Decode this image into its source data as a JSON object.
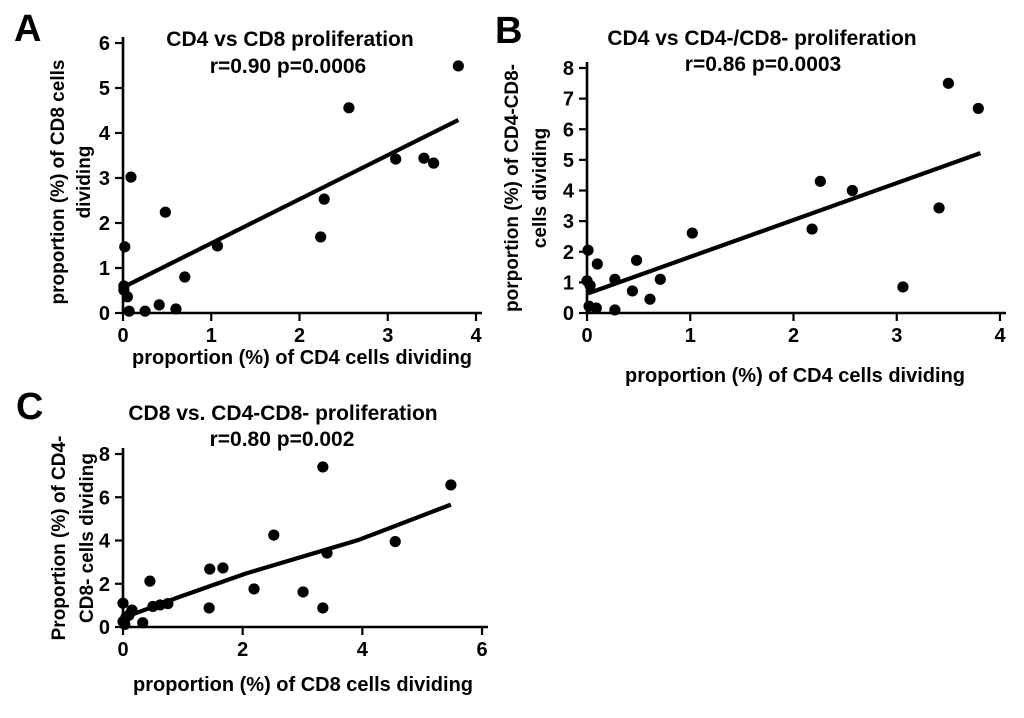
{
  "figure": {
    "background_color": "#ffffff",
    "ink_color": "#000000",
    "description": "Three-panel scatter plot figure correlating proliferation of T cell subsets"
  },
  "chart_data": [
    {
      "panel_label": "A",
      "type": "scatter",
      "title": "CD4 vs CD8 proliferation",
      "subtitle": "r=0.90 p=0.0006",
      "xlabel": "proportion (%) of CD4 cells dividing",
      "ylabel_lines": [
        "proportion (%) of CD8 cells",
        "dividing"
      ],
      "xlim": [
        0,
        4
      ],
      "ylim": [
        0,
        6
      ],
      "xticks": [
        0,
        1,
        2,
        3,
        4
      ],
      "yticks": [
        0,
        1,
        2,
        3,
        4,
        5,
        6
      ],
      "grid": false,
      "legend": null,
      "marker_color": "#000000",
      "points": [
        [
          0.01,
          0.6
        ],
        [
          0.01,
          0.51
        ],
        [
          0.05,
          0.36
        ],
        [
          0.07,
          0.04
        ],
        [
          0.25,
          0.04
        ],
        [
          0.41,
          0.18
        ],
        [
          0.6,
          0.09
        ],
        [
          0.7,
          0.8
        ],
        [
          0.09,
          3.02
        ],
        [
          0.02,
          1.47
        ],
        [
          0.48,
          2.24
        ],
        [
          1.07,
          1.49
        ],
        [
          2.24,
          1.69
        ],
        [
          2.28,
          2.53
        ],
        [
          2.56,
          4.56
        ],
        [
          3.09,
          3.42
        ],
        [
          3.41,
          3.44
        ],
        [
          3.52,
          3.33
        ],
        [
          3.8,
          5.49
        ]
      ],
      "trendline": [
        [
          0.0,
          0.57
        ],
        [
          3.8,
          4.29
        ]
      ]
    },
    {
      "panel_label": "B",
      "type": "scatter",
      "title": "CD4 vs CD4-/CD8- proliferation",
      "subtitle": "r=0.86 p=0.0003",
      "xlabel": "proportion (%) of CD4 cells dividing",
      "ylabel_lines": [
        "porportion (%) of CD4-CD8-",
        "cells dividing"
      ],
      "xlim": [
        0,
        4
      ],
      "ylim": [
        0,
        8
      ],
      "xticks": [
        0,
        1,
        2,
        3,
        4
      ],
      "yticks": [
        0,
        1,
        2,
        3,
        4,
        5,
        6,
        7,
        8
      ],
      "grid": false,
      "legend": null,
      "marker_color": "#000000",
      "points": [
        [
          0.01,
          2.05
        ],
        [
          0.1,
          1.6
        ],
        [
          0.0,
          1.05
        ],
        [
          0.03,
          0.9
        ],
        [
          0.02,
          0.22
        ],
        [
          0.09,
          0.16
        ],
        [
          0.27,
          0.1
        ],
        [
          0.27,
          1.1
        ],
        [
          0.48,
          1.72
        ],
        [
          0.44,
          0.72
        ],
        [
          0.61,
          0.45
        ],
        [
          0.71,
          1.1
        ],
        [
          1.02,
          2.61
        ],
        [
          2.26,
          4.3
        ],
        [
          2.18,
          2.74
        ],
        [
          2.57,
          4.0
        ],
        [
          3.06,
          0.85
        ],
        [
          3.41,
          3.43
        ],
        [
          3.5,
          7.5
        ],
        [
          3.79,
          6.68
        ]
      ],
      "trendline": [
        [
          0.01,
          0.64
        ],
        [
          3.81,
          5.22
        ]
      ]
    },
    {
      "panel_label": "C",
      "type": "scatter",
      "title": "CD8 vs. CD4-CD8- proliferation",
      "subtitle": "r=0.80 p=0.002",
      "xlabel": "proportion (%) of CD8 cells dividing",
      "ylabel_lines": [
        "Proportion (%) of CD4-",
        "CD8- cells dividing"
      ],
      "xlim": [
        0,
        6
      ],
      "ylim": [
        0,
        8
      ],
      "xticks": [
        0,
        2,
        4,
        6
      ],
      "yticks": [
        0,
        2,
        4,
        6,
        8
      ],
      "grid": false,
      "legend": null,
      "marker_color": "#000000",
      "points": [
        [
          0.0,
          1.1
        ],
        [
          0.0,
          0.25
        ],
        [
          0.03,
          0.12
        ],
        [
          0.05,
          0.45
        ],
        [
          0.1,
          0.55
        ],
        [
          0.15,
          0.78
        ],
        [
          0.33,
          0.2
        ],
        [
          0.45,
          2.12
        ],
        [
          0.5,
          0.95
        ],
        [
          0.62,
          1.02
        ],
        [
          0.75,
          1.08
        ],
        [
          1.44,
          0.88
        ],
        [
          1.45,
          2.68
        ],
        [
          1.67,
          2.73
        ],
        [
          2.19,
          1.76
        ],
        [
          2.52,
          4.25
        ],
        [
          3.01,
          1.62
        ],
        [
          3.34,
          7.4
        ],
        [
          3.41,
          3.42
        ],
        [
          3.34,
          0.88
        ],
        [
          4.55,
          3.95
        ],
        [
          5.48,
          6.57
        ]
      ],
      "trendline": [
        [
          0.08,
          0.5
        ],
        [
          0.95,
          1.4
        ],
        [
          2.06,
          2.48
        ],
        [
          3.93,
          4.02
        ],
        [
          5.48,
          5.66
        ]
      ]
    }
  ]
}
